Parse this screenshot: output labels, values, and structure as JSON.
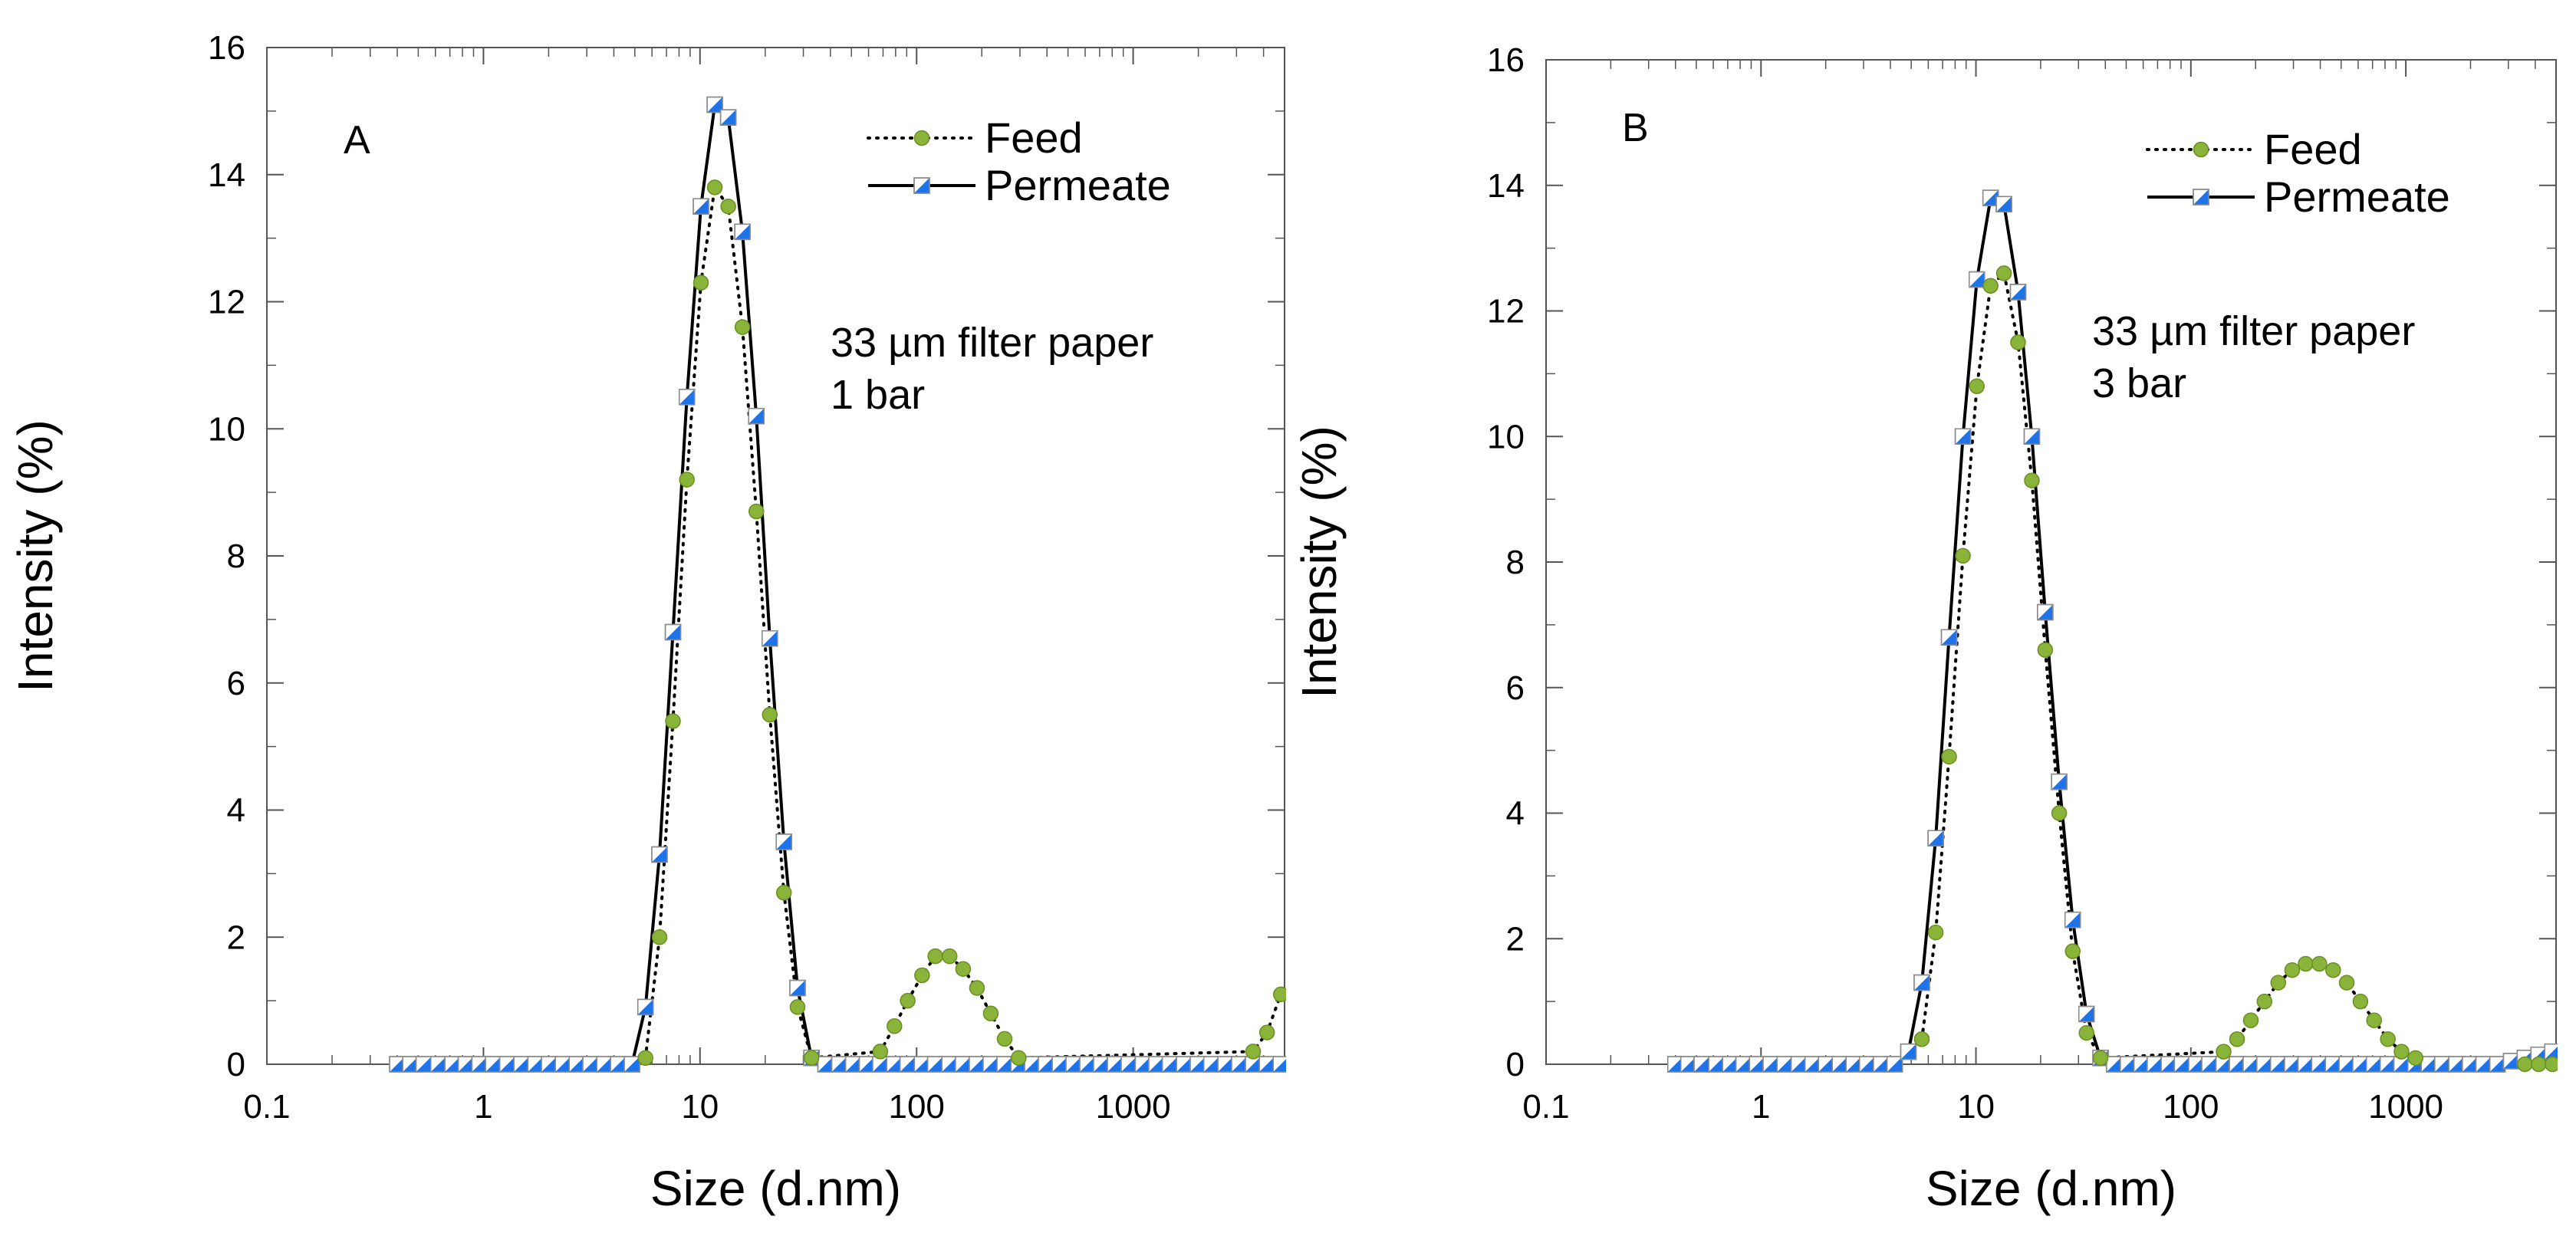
{
  "chart_data": [
    {
      "type": "line",
      "panel_label": "A",
      "xlabel": "Size (d.nm)",
      "ylabel": "Intensity (%)",
      "xscale": "log",
      "xlim": [
        0.1,
        5000
      ],
      "ylim": [
        0,
        16
      ],
      "x_ticks": [
        0.1,
        1,
        10,
        100,
        1000
      ],
      "x_tick_labels": [
        "0.1",
        "1",
        "10",
        "100",
        "1000"
      ],
      "y_ticks": [
        0,
        2,
        4,
        6,
        8,
        10,
        12,
        14,
        16
      ],
      "y_tick_labels": [
        "0",
        "2",
        "4",
        "6",
        "8",
        "10",
        "12",
        "14",
        "16"
      ],
      "annotation": [
        "33 µm filter paper",
        "1 bar"
      ],
      "legend_position": "top-right",
      "series": [
        {
          "name": "Feed",
          "style": "dotted",
          "marker": "circle",
          "color": "#8ab33a",
          "points": [
            [
              5.6,
              0.1
            ],
            [
              6.5,
              2.0
            ],
            [
              7.5,
              5.4
            ],
            [
              8.7,
              9.2
            ],
            [
              10.1,
              12.3
            ],
            [
              11.7,
              13.8
            ],
            [
              13.5,
              13.5
            ],
            [
              15.7,
              11.6
            ],
            [
              18.2,
              8.7
            ],
            [
              21.0,
              5.5
            ],
            [
              24.4,
              2.7
            ],
            [
              28.2,
              0.9
            ],
            [
              32.7,
              0.1
            ],
            [
              68,
              0.2
            ],
            [
              79,
              0.6
            ],
            [
              91,
              1.0
            ],
            [
              106,
              1.4
            ],
            [
              122,
              1.7
            ],
            [
              142,
              1.7
            ],
            [
              164,
              1.5
            ],
            [
              190,
              1.2
            ],
            [
              220,
              0.8
            ],
            [
              255,
              0.4
            ],
            [
              296,
              0.1
            ],
            [
              3580,
              0.2
            ],
            [
              4150,
              0.5
            ],
            [
              4810,
              1.1
            ]
          ]
        },
        {
          "name": "Permeate",
          "style": "solid",
          "marker": "half-square",
          "color": "#1e73e8",
          "points": [
            [
              0.4,
              0
            ],
            [
              0.46,
              0
            ],
            [
              0.53,
              0
            ],
            [
              0.62,
              0
            ],
            [
              0.72,
              0
            ],
            [
              0.83,
              0
            ],
            [
              0.96,
              0
            ],
            [
              1.11,
              0
            ],
            [
              1.29,
              0
            ],
            [
              1.5,
              0
            ],
            [
              1.74,
              0
            ],
            [
              2.01,
              0
            ],
            [
              2.33,
              0
            ],
            [
              2.7,
              0
            ],
            [
              3.12,
              0
            ],
            [
              3.62,
              0
            ],
            [
              4.19,
              0
            ],
            [
              4.85,
              0
            ],
            [
              5.6,
              0.9
            ],
            [
              6.5,
              3.3
            ],
            [
              7.5,
              6.8
            ],
            [
              8.7,
              10.5
            ],
            [
              10.1,
              13.5
            ],
            [
              11.7,
              15.1
            ],
            [
              13.5,
              14.9
            ],
            [
              15.7,
              13.1
            ],
            [
              18.2,
              10.2
            ],
            [
              21.0,
              6.7
            ],
            [
              24.4,
              3.5
            ],
            [
              28.2,
              1.2
            ],
            [
              32.7,
              0.1
            ],
            [
              38,
              0
            ],
            [
              44,
              0
            ],
            [
              51,
              0
            ],
            [
              59,
              0
            ],
            [
              68,
              0
            ],
            [
              79,
              0
            ],
            [
              91,
              0
            ],
            [
              106,
              0
            ],
            [
              122,
              0
            ],
            [
              142,
              0
            ],
            [
              164,
              0
            ],
            [
              190,
              0
            ],
            [
              220,
              0
            ],
            [
              255,
              0
            ],
            [
              296,
              0
            ],
            [
              342,
              0
            ],
            [
              396,
              0
            ],
            [
              459,
              0
            ],
            [
              531,
              0
            ],
            [
              615,
              0
            ],
            [
              712,
              0
            ],
            [
              825,
              0
            ],
            [
              955,
              0
            ],
            [
              1110,
              0
            ],
            [
              1280,
              0
            ],
            [
              1480,
              0
            ],
            [
              1720,
              0
            ],
            [
              1990,
              0
            ],
            [
              2300,
              0
            ],
            [
              2670,
              0
            ],
            [
              3090,
              0
            ],
            [
              3580,
              0
            ],
            [
              4150,
              0
            ],
            [
              4810,
              0
            ]
          ]
        }
      ]
    },
    {
      "type": "line",
      "panel_label": "B",
      "xlabel": "Size (d.nm)",
      "ylabel": "Intensity (%)",
      "xscale": "log",
      "xlim": [
        0.1,
        5000
      ],
      "ylim": [
        0,
        16
      ],
      "x_ticks": [
        0.1,
        1,
        10,
        100,
        1000
      ],
      "x_tick_labels": [
        "0.1",
        "1",
        "10",
        "100",
        "1000"
      ],
      "y_ticks": [
        0,
        2,
        4,
        6,
        8,
        10,
        12,
        14,
        16
      ],
      "y_tick_labels": [
        "0",
        "2",
        "4",
        "6",
        "8",
        "10",
        "12",
        "14",
        "16"
      ],
      "annotation": [
        "33 µm filter paper",
        "3 bar"
      ],
      "legend_position": "top-right",
      "series": [
        {
          "name": "Feed",
          "style": "dotted",
          "marker": "circle",
          "color": "#8ab33a",
          "points": [
            [
              5.6,
              0.4
            ],
            [
              6.5,
              2.1
            ],
            [
              7.5,
              4.9
            ],
            [
              8.7,
              8.1
            ],
            [
              10.1,
              10.8
            ],
            [
              11.7,
              12.4
            ],
            [
              13.5,
              12.6
            ],
            [
              15.7,
              11.5
            ],
            [
              18.2,
              9.3
            ],
            [
              21.0,
              6.6
            ],
            [
              24.4,
              4.0
            ],
            [
              28.2,
              1.8
            ],
            [
              32.7,
              0.5
            ],
            [
              38,
              0.1
            ],
            [
              142,
              0.2
            ],
            [
              164,
              0.4
            ],
            [
              190,
              0.7
            ],
            [
              220,
              1.0
            ],
            [
              255,
              1.3
            ],
            [
              296,
              1.5
            ],
            [
              342,
              1.6
            ],
            [
              396,
              1.6
            ],
            [
              459,
              1.5
            ],
            [
              531,
              1.3
            ],
            [
              615,
              1.0
            ],
            [
              712,
              0.7
            ],
            [
              825,
              0.4
            ],
            [
              955,
              0.2
            ],
            [
              1110,
              0.1
            ],
            [
              3580,
              0
            ],
            [
              4150,
              0
            ],
            [
              4810,
              0
            ]
          ]
        },
        {
          "name": "Permeate",
          "style": "solid",
          "marker": "half-square",
          "color": "#1e73e8",
          "points": [
            [
              0.4,
              0
            ],
            [
              0.46,
              0
            ],
            [
              0.53,
              0
            ],
            [
              0.62,
              0
            ],
            [
              0.72,
              0
            ],
            [
              0.83,
              0
            ],
            [
              0.96,
              0
            ],
            [
              1.11,
              0
            ],
            [
              1.29,
              0
            ],
            [
              1.5,
              0
            ],
            [
              1.74,
              0
            ],
            [
              2.01,
              0
            ],
            [
              2.33,
              0
            ],
            [
              2.7,
              0
            ],
            [
              3.12,
              0
            ],
            [
              3.62,
              0
            ],
            [
              4.19,
              0
            ],
            [
              4.85,
              0.2
            ],
            [
              5.6,
              1.3
            ],
            [
              6.5,
              3.6
            ],
            [
              7.5,
              6.8
            ],
            [
              8.7,
              10.0
            ],
            [
              10.1,
              12.5
            ],
            [
              11.7,
              13.8
            ],
            [
              13.5,
              13.7
            ],
            [
              15.7,
              12.3
            ],
            [
              18.2,
              10.0
            ],
            [
              21.0,
              7.2
            ],
            [
              24.4,
              4.5
            ],
            [
              28.2,
              2.3
            ],
            [
              32.7,
              0.8
            ],
            [
              38,
              0.1
            ],
            [
              44,
              0
            ],
            [
              51,
              0
            ],
            [
              59,
              0
            ],
            [
              68,
              0
            ],
            [
              79,
              0
            ],
            [
              91,
              0
            ],
            [
              106,
              0
            ],
            [
              122,
              0
            ],
            [
              142,
              0
            ],
            [
              164,
              0
            ],
            [
              190,
              0
            ],
            [
              220,
              0
            ],
            [
              255,
              0
            ],
            [
              296,
              0
            ],
            [
              342,
              0
            ],
            [
              396,
              0
            ],
            [
              459,
              0
            ],
            [
              531,
              0
            ],
            [
              615,
              0
            ],
            [
              712,
              0
            ],
            [
              825,
              0
            ],
            [
              955,
              0
            ],
            [
              1110,
              0
            ],
            [
              1280,
              0
            ],
            [
              1480,
              0
            ],
            [
              1720,
              0
            ],
            [
              1990,
              0
            ],
            [
              2300,
              0
            ],
            [
              2670,
              0
            ],
            [
              3090,
              0.05
            ],
            [
              3580,
              0.1
            ],
            [
              4150,
              0.15
            ],
            [
              4810,
              0.2
            ]
          ]
        }
      ]
    }
  ]
}
